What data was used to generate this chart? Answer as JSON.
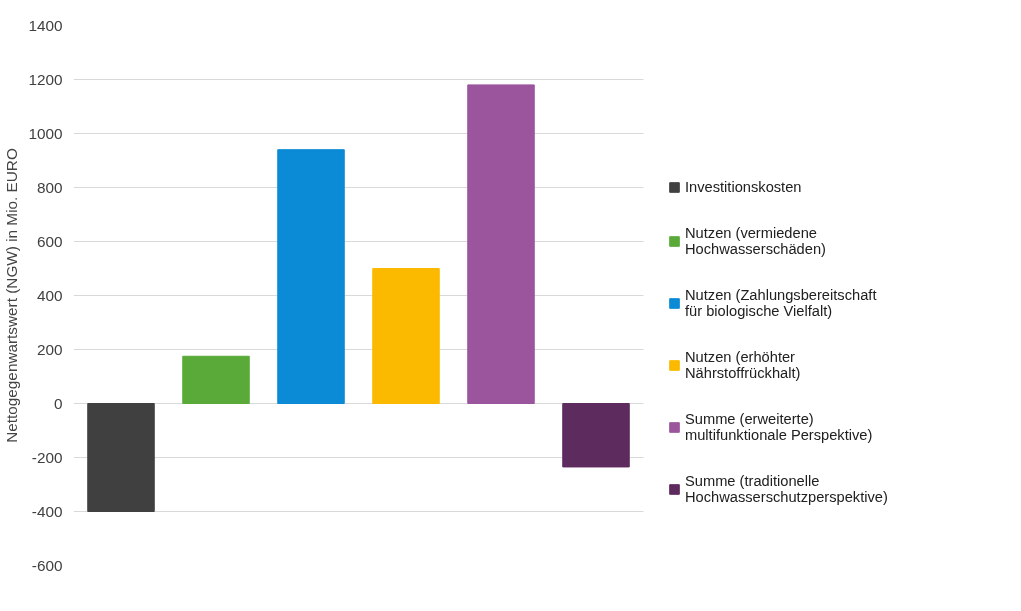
{
  "chart_data": {
    "type": "bar",
    "ylabel": "Nettogegenwartswert (NGW) in Mio. EURO",
    "categories": [
      null,
      null,
      null,
      null,
      null,
      null
    ],
    "ylim": [
      -600,
      1400
    ],
    "yticks": [
      -600,
      -400,
      -200,
      0,
      200,
      400,
      600,
      800,
      1000,
      1200,
      1400
    ],
    "stacked": true,
    "grid": "y",
    "legend": "right",
    "tick_labels": "y",
    "series": [
      {
        "name": "Investitionskosten",
        "color": "#404040",
        "values": [
          -400,
          null,
          null,
          null,
          null,
          null
        ]
      },
      {
        "name": "Nutzen (vermiedene Hochwasserschäden)",
        "color": "#5aaa3a",
        "values": [
          null,
          175,
          null,
          null,
          null,
          null
        ]
      },
      {
        "name": "Nutzen (Zahlungsbereitschaft für biologische Vielfalt)",
        "color": "#0b8ad6",
        "values": [
          null,
          null,
          940,
          null,
          null,
          null
        ]
      },
      {
        "name": "Nutzen (erhöhter Nährstoffrückhalt)",
        "color": "#fbb900",
        "values": [
          null,
          null,
          null,
          500,
          null,
          null
        ]
      },
      {
        "name": "Summe (erweiterte) multifunktionale Perspektive)",
        "color": "#9b559c",
        "values": [
          null,
          null,
          null,
          null,
          1180,
          null
        ]
      },
      {
        "name": "Summe (traditionelle Hochwasserschutzperspektive)",
        "color": "#5e2b5e",
        "values": [
          null,
          null,
          null,
          null,
          null,
          -235
        ]
      }
    ]
  }
}
